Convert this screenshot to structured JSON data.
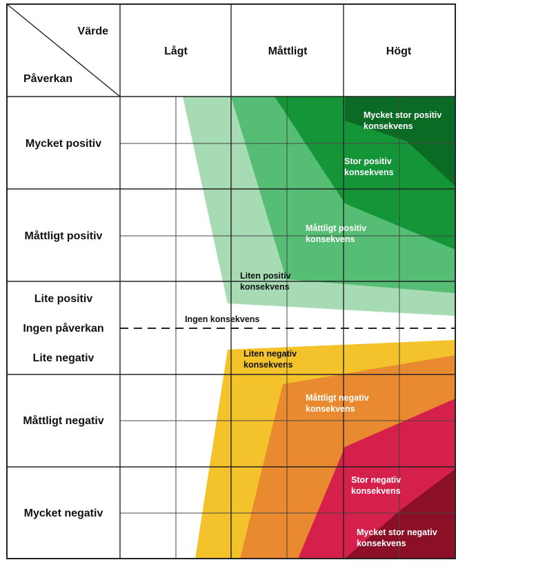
{
  "header": {
    "corner_value_label": "Värde",
    "corner_impact_label": "Påverkan",
    "columns": [
      "Lågt",
      "Måttligt",
      "Högt"
    ]
  },
  "rows": [
    "Mycket positiv",
    "Måttligt positiv",
    "Lite positiv",
    "Ingen påverkan",
    "Lite negativ",
    "Måttligt negativ",
    "Mycket negativ"
  ],
  "zones": {
    "pos_very_large": {
      "line1": "Mycket stor positiv",
      "line2": "konsekvens",
      "color": "#0b6b25",
      "text_color": "#ffffff"
    },
    "pos_large": {
      "line1": "Stor positiv",
      "line2": "konsekvens",
      "color": "#149638",
      "text_color": "#ffffff"
    },
    "pos_moderate": {
      "line1": "Måttligt positiv",
      "line2": "konsekvens",
      "color": "#55be74",
      "text_color": "#ffffff"
    },
    "pos_small": {
      "line1": "Liten positiv",
      "line2": "konsekvens",
      "color": "#a6dbb4",
      "text_color": "#111111"
    },
    "none": {
      "line1": "Ingen konsekvens",
      "color": "#ffffff",
      "text_color": "#111111"
    },
    "neg_small": {
      "line1": "Liten negativ",
      "line2": "konsekvens",
      "color": "#f4c22b",
      "text_color": "#111111"
    },
    "neg_moderate": {
      "line1": "Måttligt negativ",
      "line2": "konsekvens",
      "color": "#ea8a30",
      "text_color": "#ffffff"
    },
    "neg_large": {
      "line1": "Stor negativ",
      "line2": "konsekvens",
      "color": "#d4204a",
      "text_color": "#ffffff"
    },
    "neg_very_large": {
      "line1": "Mycket stor negativ",
      "line2": "konsekvens",
      "color": "#8a0f27",
      "text_color": "#ffffff"
    }
  }
}
